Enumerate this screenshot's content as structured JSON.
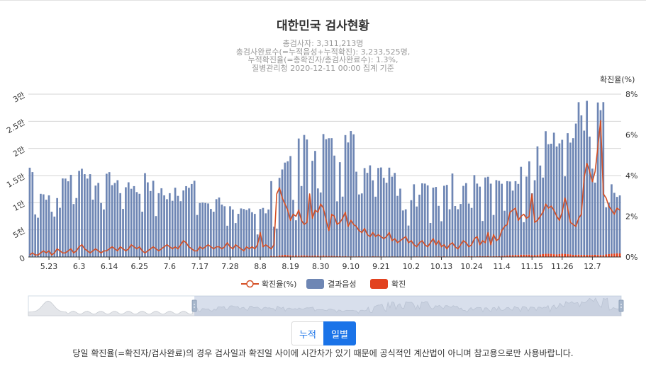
{
  "chart_data": {
    "type": "bar",
    "title": "대한민국 검사현황",
    "subtitle": [
      "총검사자: 3,311,213명",
      "총검사완료수(=누적음성+누적확진): 3,233,525명,",
      "누적확진율(=총확진자/총검사완료수): 1.3%,",
      "질병관리청 2020-12-11 00:00 집계 기준"
    ],
    "y_left_ticks": [
      "0",
      "5천",
      "1만",
      "1.5만",
      "2만",
      "2.5만",
      "3만"
    ],
    "y_left_max": 30000,
    "y_right_name": "확진율(%)",
    "y_right_ticks": [
      "0%",
      "2%",
      "4%",
      "6%",
      "8%"
    ],
    "y_right_max": 8,
    "x_ticks": [
      {
        "label": "5.23",
        "index": 7
      },
      {
        "label": "6.3",
        "index": 18
      },
      {
        "label": "6.14",
        "index": 29
      },
      {
        "label": "6.25",
        "index": 40
      },
      {
        "label": "7.6",
        "index": 51
      },
      {
        "label": "7.17",
        "index": 62
      },
      {
        "label": "7.28",
        "index": 73
      },
      {
        "label": "8.8",
        "index": 84
      },
      {
        "label": "8.19",
        "index": 95
      },
      {
        "label": "8.30",
        "index": 106
      },
      {
        "label": "9.10",
        "index": 117
      },
      {
        "label": "9.21",
        "index": 128
      },
      {
        "label": "10.2",
        "index": 139
      },
      {
        "label": "10.13",
        "index": 150
      },
      {
        "label": "10.24",
        "index": 161
      },
      {
        "label": "11.4",
        "index": 172
      },
      {
        "label": "11.15",
        "index": 183
      },
      {
        "label": "11.26",
        "index": 194
      },
      {
        "label": "12.7",
        "index": 205
      }
    ],
    "negative": [
      16400,
      15600,
      7800,
      7200,
      11600,
      11500,
      10500,
      11300,
      8300,
      7400,
      10800,
      9000,
      14400,
      14400,
      13900,
      15100,
      9700,
      10800,
      15800,
      16200,
      15200,
      14400,
      15200,
      10500,
      13100,
      13600,
      9900,
      8700,
      15300,
      15600,
      13200,
      13600,
      14100,
      11700,
      8800,
      12800,
      13700,
      12500,
      13000,
      11900,
      11600,
      8300,
      15400,
      13700,
      12100,
      14000,
      7500,
      11700,
      12600,
      11300,
      10600,
      11700,
      10300,
      12700,
      11200,
      10200,
      12200,
      13000,
      12700,
      13400,
      14000,
      7700,
      9900,
      10000,
      9900,
      9800,
      8800,
      8300,
      10600,
      10900,
      9600,
      9300,
      5700,
      9300,
      8700,
      6200,
      7900,
      8900,
      8800,
      8600,
      8900,
      8200,
      7900,
      4100,
      8800,
      9000,
      8000,
      8700,
      13800,
      5400,
      5100,
      14300,
      15800,
      17000,
      17300,
      18300,
      10300,
      6500,
      21600,
      12800,
      22200,
      21400,
      10300,
      17500,
      19300,
      12400,
      11700,
      22400,
      21500,
      21700,
      21700,
      18500,
      10100,
      17300,
      11000,
      22300,
      21000,
      23100,
      22500,
      15600,
      11400,
      11600,
      16300,
      15400,
      16800,
      14000,
      11000,
      16300,
      16400,
      14500,
      13600,
      16400,
      14700,
      15400,
      11200,
      12500,
      8500,
      8700,
      5700,
      10400,
      13300,
      9200,
      11400,
      13500,
      13400,
      13100,
      6200,
      12700,
      12800,
      9300,
      6500,
      13000,
      13200,
      8700,
      15300,
      9300,
      8700,
      9700,
      13000,
      13500,
      9700,
      8900,
      15000,
      13400,
      12800,
      6500,
      14500,
      14600,
      13400,
      7600,
      14000,
      13900,
      13300,
      8300,
      13700,
      13600,
      11900,
      13600,
      13100,
      16200,
      6000,
      14400,
      17200,
      11400,
      13800,
      20000,
      16400,
      14100,
      22600,
      20200,
      20300,
      22400,
      19900,
      20400,
      21000,
      14300,
      22300,
      20600,
      21500,
      24200,
      28100,
      25700,
      22900,
      28400,
      21800,
      15900,
      13300,
      28100,
      26700,
      28200,
      8700,
      9500,
      12800,
      11200,
      10400,
      10700
    ],
    "confirmed": [
      50,
      40,
      45,
      30,
      35,
      40,
      45,
      55,
      40,
      45,
      50,
      60,
      70,
      50,
      45,
      40,
      55,
      60,
      70,
      55,
      50,
      45,
      50,
      60,
      55,
      50,
      45,
      55,
      40,
      30,
      35,
      40,
      45,
      60,
      60,
      45,
      60,
      65,
      55,
      60,
      40,
      45,
      45,
      50,
      55,
      45,
      40,
      55,
      60,
      55,
      45,
      55,
      50,
      65,
      60,
      75,
      60,
      50,
      45,
      45,
      45,
      40,
      50,
      40,
      55,
      60,
      55,
      40,
      50,
      60,
      55,
      50,
      60,
      45,
      40,
      45,
      50,
      45,
      40,
      50,
      40,
      45,
      40,
      50,
      45,
      40,
      40,
      50,
      180,
      170,
      130,
      280,
      320,
      390,
      330,
      300,
      220,
      260,
      230,
      270,
      280,
      250,
      200,
      220,
      240,
      230,
      190,
      250,
      200,
      180,
      190,
      180,
      150,
      160,
      120,
      160,
      100,
      110,
      100,
      110,
      120,
      110,
      80,
      100,
      80,
      120,
      110,
      100,
      90,
      90,
      80,
      60,
      90,
      90,
      60,
      90,
      70,
      80,
      90,
      60,
      90,
      100,
      80,
      70,
      120,
      100,
      60,
      80,
      100,
      120,
      90,
      120,
      80,
      90,
      80,
      90,
      100,
      70,
      100,
      110,
      140,
      140,
      90,
      120,
      160,
      130,
      150,
      180,
      110,
      140,
      160,
      130,
      190,
      220,
      270,
      310,
      330,
      370,
      360,
      410,
      410,
      410,
      420,
      330,
      340,
      380,
      450,
      530,
      580,
      580,
      570,
      500,
      460,
      530,
      590,
      560,
      510,
      470,
      390,
      380,
      420,
      390,
      380,
      370,
      380,
      380,
      400,
      370,
      350,
      330,
      460,
      520,
      590,
      620,
      670,
      650,
      640,
      620,
      550,
      470,
      540,
      590,
      610,
      580,
      660,
      620,
      580,
      720,
      680
    ],
    "rate": [
      0.1,
      0.2,
      0.1,
      0.1,
      0.2,
      0.3,
      0.2,
      0.3,
      0.1,
      0.2,
      0.4,
      0.3,
      0.2,
      0.2,
      0.3,
      0.4,
      0.2,
      0.3,
      0.5,
      0.6,
      0.4,
      0.3,
      0.2,
      0.3,
      0.4,
      0.3,
      0.2,
      0.3,
      0.3,
      0.4,
      0.5,
      0.4,
      0.3,
      0.5,
      0.4,
      0.3,
      0.4,
      0.6,
      0.5,
      0.4,
      0.5,
      0.3,
      0.2,
      0.3,
      0.4,
      0.5,
      0.4,
      0.3,
      0.4,
      0.5,
      0.6,
      0.5,
      0.4,
      0.5,
      0.4,
      0.6,
      0.8,
      0.7,
      0.5,
      0.4,
      0.3,
      0.3,
      0.5,
      0.4,
      0.5,
      0.6,
      0.5,
      0.4,
      0.5,
      0.5,
      0.4,
      0.5,
      0.7,
      0.5,
      0.4,
      0.6,
      0.5,
      0.4,
      0.3,
      0.5,
      0.4,
      0.5,
      0.4,
      0.6,
      1.2,
      0.5,
      0.6,
      0.5,
      0.4,
      0.6,
      3.1,
      3.4,
      2.9,
      2.6,
      2.3,
      1.8,
      2.1,
      2.0,
      2.3,
      1.8,
      1.6,
      1.7,
      3.1,
      1.9,
      2.3,
      2.2,
      2.6,
      2.4,
      1.8,
      1.3,
      2.1,
      2.0,
      1.6,
      1.7,
      1.9,
      2.2,
      1.5,
      1.8,
      1.6,
      1.5,
      1.3,
      1.2,
      1.4,
      1.1,
      1.0,
      1.2,
      1.0,
      1.1,
      1.0,
      0.9,
      1.0,
      1.2,
      0.8,
      0.9,
      0.7,
      0.8,
      0.9,
      1.0,
      0.7,
      0.8,
      0.6,
      0.5,
      0.7,
      0.8,
      0.6,
      0.5,
      0.7,
      0.9,
      0.6,
      0.8,
      0.5,
      0.6,
      0.4,
      0.6,
      0.7,
      0.5,
      0.4,
      0.6,
      0.8,
      0.7,
      0.5,
      0.6,
      0.9,
      1.0,
      0.6,
      0.8,
      0.7,
      1.2,
      0.6,
      1.1,
      0.8,
      0.9,
      1.3,
      1.5,
      1.6,
      2.2,
      2.3,
      2.4,
      1.8,
      2.0,
      2.1,
      1.9,
      2.0,
      3.1,
      1.7,
      1.8,
      2.0,
      2.2,
      2.6,
      2.4,
      2.5,
      2.3,
      2.0,
      1.8,
      2.2,
      2.9,
      2.4,
      1.7,
      1.6,
      1.5,
      1.9,
      2.1,
      3.9,
      4.6,
      4.2,
      3.7,
      4.2,
      5.4,
      6.7,
      3.1,
      2.9,
      2.5,
      2.3,
      2.1,
      2.4,
      2.3
    ],
    "legend": [
      {
        "name": "확진율(%)",
        "color": "#d44e24"
      },
      {
        "name": "결과음성",
        "color": "#6e86b4"
      },
      {
        "name": "확진",
        "color": "#e2421f"
      }
    ],
    "colors": {
      "negative": "#6e86b4",
      "confirmed": "#e2421f",
      "rate": "#d44e24"
    }
  },
  "toggle": {
    "cumulative_label": "누적",
    "daily_label": "일별"
  },
  "footnote": "당일 확진율(=확진자/검사완료)의 경우 검사일과 확진일 사이에 시간차가 있기 때문에 공식적인 계산법이 아니며 참고용으로만 사용바랍니다."
}
